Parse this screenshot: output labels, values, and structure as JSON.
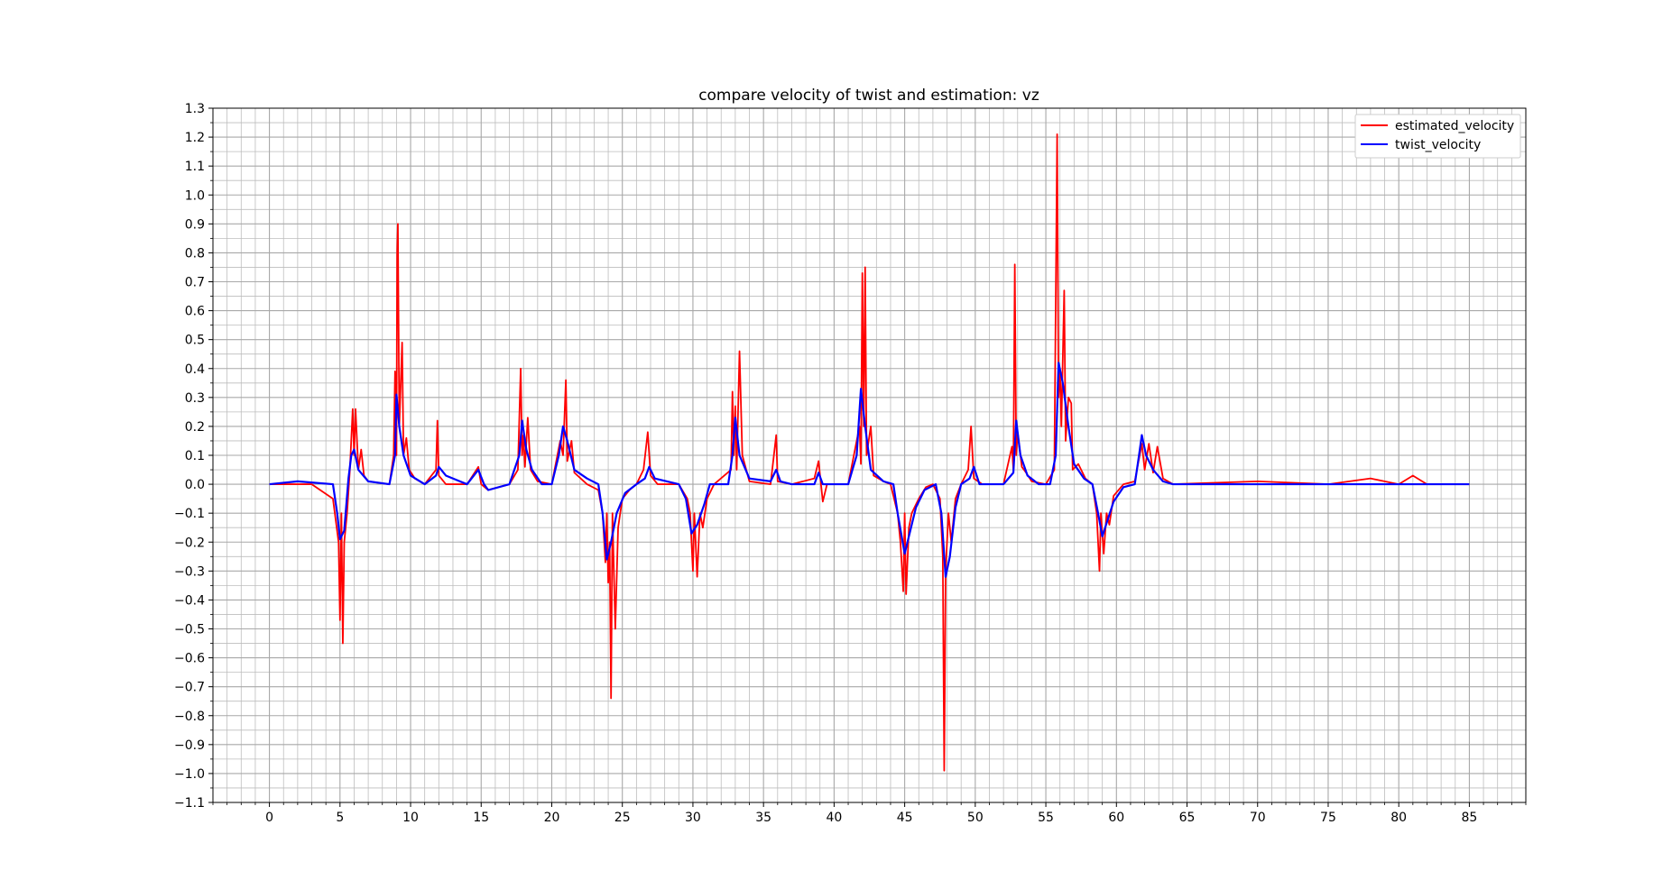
{
  "chart_data": {
    "type": "line",
    "title": "compare velocity of twist and estimation: vz",
    "xlabel": "",
    "ylabel": "",
    "xlim": [
      -4,
      89
    ],
    "ylim": [
      -1.1,
      1.3
    ],
    "x_ticks": [
      "0",
      "5",
      "10",
      "15",
      "20",
      "25",
      "30",
      "35",
      "40",
      "45",
      "50",
      "55",
      "60",
      "65",
      "70",
      "75",
      "80",
      "85"
    ],
    "y_ticks": [
      "1.3",
      "1.2",
      "1.1",
      "1.0",
      "0.9",
      "0.8",
      "0.7",
      "0.6",
      "0.5",
      "0.4",
      "0.3",
      "0.2",
      "0.1",
      "0.0",
      "−0.1",
      "−0.2",
      "−0.3",
      "−0.4",
      "−0.5",
      "−0.6",
      "−0.7",
      "−0.8",
      "−0.9",
      "−1.0",
      "−1.1"
    ],
    "grid": true,
    "minor_grid": true,
    "legend_position": "top-right",
    "series": [
      {
        "name": "estimated_velocity",
        "color": "#ff0000",
        "points": [
          [
            0,
            0
          ],
          [
            3,
            0
          ],
          [
            4.5,
            -0.05
          ],
          [
            4.9,
            -0.2
          ],
          [
            5.0,
            -0.47
          ],
          [
            5.1,
            -0.1
          ],
          [
            5.2,
            -0.55
          ],
          [
            5.3,
            -0.2
          ],
          [
            5.5,
            -0.1
          ],
          [
            5.7,
            0.05
          ],
          [
            5.9,
            0.26
          ],
          [
            6.0,
            0.1
          ],
          [
            6.1,
            0.26
          ],
          [
            6.3,
            0.05
          ],
          [
            6.5,
            0.12
          ],
          [
            6.7,
            0.03
          ],
          [
            7,
            0.01
          ],
          [
            8.5,
            0
          ],
          [
            8.8,
            0.1
          ],
          [
            8.9,
            0.39
          ],
          [
            9.0,
            0.1
          ],
          [
            9.05,
            0.8
          ],
          [
            9.1,
            0.9
          ],
          [
            9.2,
            0.2
          ],
          [
            9.4,
            0.49
          ],
          [
            9.5,
            0.1
          ],
          [
            9.7,
            0.16
          ],
          [
            9.9,
            0.05
          ],
          [
            10.3,
            0.02
          ],
          [
            11,
            0
          ],
          [
            11.8,
            0.05
          ],
          [
            11.9,
            0.22
          ],
          [
            12.0,
            0.03
          ],
          [
            12.5,
            0
          ],
          [
            14,
            0
          ],
          [
            14.8,
            0.06
          ],
          [
            15,
            0
          ],
          [
            15.5,
            -0.02
          ],
          [
            17,
            0
          ],
          [
            17.6,
            0.05
          ],
          [
            17.8,
            0.4
          ],
          [
            17.9,
            0.1
          ],
          [
            18.0,
            0.17
          ],
          [
            18.1,
            0.06
          ],
          [
            18.3,
            0.23
          ],
          [
            18.5,
            0.05
          ],
          [
            19,
            0.01
          ],
          [
            20,
            0
          ],
          [
            20.6,
            0.15
          ],
          [
            20.8,
            0.1
          ],
          [
            21.0,
            0.36
          ],
          [
            21.1,
            0.08
          ],
          [
            21.4,
            0.15
          ],
          [
            21.6,
            0.04
          ],
          [
            22.5,
            0
          ],
          [
            23.3,
            -0.02
          ],
          [
            23.6,
            -0.1
          ],
          [
            23.8,
            -0.27
          ],
          [
            23.9,
            -0.1
          ],
          [
            24.0,
            -0.34
          ],
          [
            24.1,
            -0.2
          ],
          [
            24.2,
            -0.74
          ],
          [
            24.3,
            -0.1
          ],
          [
            24.5,
            -0.5
          ],
          [
            24.7,
            -0.15
          ],
          [
            25.0,
            -0.05
          ],
          [
            25.5,
            -0.02
          ],
          [
            26,
            0
          ],
          [
            26.5,
            0.05
          ],
          [
            26.8,
            0.18
          ],
          [
            27.0,
            0.03
          ],
          [
            27.5,
            0
          ],
          [
            29,
            0
          ],
          [
            29.6,
            -0.05
          ],
          [
            29.8,
            -0.1
          ],
          [
            30.0,
            -0.3
          ],
          [
            30.1,
            -0.1
          ],
          [
            30.3,
            -0.32
          ],
          [
            30.5,
            -0.1
          ],
          [
            30.7,
            -0.15
          ],
          [
            31,
            -0.05
          ],
          [
            31.5,
            0
          ],
          [
            32.7,
            0.05
          ],
          [
            32.8,
            0.32
          ],
          [
            32.9,
            0.1
          ],
          [
            33.0,
            0.27
          ],
          [
            33.1,
            0.05
          ],
          [
            33.3,
            0.46
          ],
          [
            33.5,
            0.1
          ],
          [
            34,
            0.01
          ],
          [
            35.5,
            0
          ],
          [
            35.9,
            0.17
          ],
          [
            36.0,
            0.01
          ],
          [
            37,
            0
          ],
          [
            38.6,
            0.02
          ],
          [
            38.9,
            0.08
          ],
          [
            39.2,
            -0.06
          ],
          [
            39.5,
            0
          ],
          [
            41,
            0
          ],
          [
            41.8,
            0.2
          ],
          [
            41.9,
            0.07
          ],
          [
            42.0,
            0.73
          ],
          [
            42.1,
            0.2
          ],
          [
            42.2,
            0.75
          ],
          [
            42.3,
            0.1
          ],
          [
            42.6,
            0.2
          ],
          [
            42.8,
            0.03
          ],
          [
            43.5,
            0.01
          ],
          [
            44,
            0
          ],
          [
            44.5,
            -0.1
          ],
          [
            44.7,
            -0.2
          ],
          [
            44.9,
            -0.37
          ],
          [
            45.0,
            -0.1
          ],
          [
            45.1,
            -0.38
          ],
          [
            45.3,
            -0.15
          ],
          [
            45.5,
            -0.1
          ],
          [
            46,
            -0.05
          ],
          [
            46.5,
            -0.01
          ],
          [
            47,
            0
          ],
          [
            47.5,
            -0.05
          ],
          [
            47.7,
            -0.25
          ],
          [
            47.8,
            -0.99
          ],
          [
            47.9,
            -0.3
          ],
          [
            48.1,
            -0.1
          ],
          [
            48.3,
            -0.2
          ],
          [
            48.6,
            -0.05
          ],
          [
            49,
            0
          ],
          [
            49.5,
            0.05
          ],
          [
            49.7,
            0.2
          ],
          [
            49.9,
            0.02
          ],
          [
            50.5,
            0
          ],
          [
            52,
            0
          ],
          [
            52.6,
            0.13
          ],
          [
            52.7,
            0.05
          ],
          [
            52.8,
            0.76
          ],
          [
            52.9,
            0.1
          ],
          [
            53.0,
            0.18
          ],
          [
            53.3,
            0.06
          ],
          [
            53.6,
            0.04
          ],
          [
            54,
            0.01
          ],
          [
            55,
            0
          ],
          [
            55.6,
            0.05
          ],
          [
            55.8,
            1.21
          ],
          [
            55.9,
            0.3
          ],
          [
            56.0,
            0.4
          ],
          [
            56.1,
            0.2
          ],
          [
            56.3,
            0.67
          ],
          [
            56.4,
            0.15
          ],
          [
            56.6,
            0.3
          ],
          [
            56.8,
            0.28
          ],
          [
            56.9,
            0.05
          ],
          [
            57.3,
            0.07
          ],
          [
            57.8,
            0.02
          ],
          [
            58.3,
            0
          ],
          [
            58.6,
            -0.1
          ],
          [
            58.8,
            -0.3
          ],
          [
            58.9,
            -0.1
          ],
          [
            59.1,
            -0.24
          ],
          [
            59.3,
            -0.1
          ],
          [
            59.5,
            -0.14
          ],
          [
            59.8,
            -0.04
          ],
          [
            60.5,
            0
          ],
          [
            61.3,
            0.01
          ],
          [
            61.8,
            0.14
          ],
          [
            62.0,
            0.05
          ],
          [
            62.3,
            0.14
          ],
          [
            62.6,
            0.04
          ],
          [
            62.9,
            0.13
          ],
          [
            63.3,
            0.02
          ],
          [
            64,
            0
          ],
          [
            70,
            0.01
          ],
          [
            75,
            0
          ],
          [
            78,
            0.02
          ],
          [
            80,
            0
          ],
          [
            81,
            0.03
          ],
          [
            82,
            0
          ],
          [
            85,
            0
          ]
        ]
      },
      {
        "name": "twist_velocity",
        "color": "#0000ff",
        "points": [
          [
            0,
            0
          ],
          [
            2,
            0.01
          ],
          [
            4.5,
            0
          ],
          [
            4.8,
            -0.1
          ],
          [
            5.0,
            -0.19
          ],
          [
            5.3,
            -0.16
          ],
          [
            5.6,
            0.02
          ],
          [
            5.8,
            0.1
          ],
          [
            6.0,
            0.12
          ],
          [
            6.3,
            0.05
          ],
          [
            7,
            0.01
          ],
          [
            8.5,
            0
          ],
          [
            8.9,
            0.1
          ],
          [
            9.0,
            0.31
          ],
          [
            9.2,
            0.2
          ],
          [
            9.5,
            0.1
          ],
          [
            10,
            0.03
          ],
          [
            11,
            0
          ],
          [
            11.8,
            0.03
          ],
          [
            12,
            0.06
          ],
          [
            12.5,
            0.03
          ],
          [
            14,
            0
          ],
          [
            14.8,
            0.05
          ],
          [
            15.2,
            0
          ],
          [
            15.5,
            -0.02
          ],
          [
            17,
            0
          ],
          [
            17.7,
            0.1
          ],
          [
            17.9,
            0.22
          ],
          [
            18.2,
            0.12
          ],
          [
            18.6,
            0.05
          ],
          [
            19.3,
            0
          ],
          [
            20,
            0
          ],
          [
            20.5,
            0.1
          ],
          [
            20.8,
            0.2
          ],
          [
            21.1,
            0.15
          ],
          [
            21.6,
            0.05
          ],
          [
            22.5,
            0.02
          ],
          [
            23.3,
            0
          ],
          [
            23.6,
            -0.1
          ],
          [
            23.9,
            -0.26
          ],
          [
            24.2,
            -0.2
          ],
          [
            24.6,
            -0.1
          ],
          [
            25.2,
            -0.03
          ],
          [
            26,
            0
          ],
          [
            26.6,
            0.02
          ],
          [
            26.9,
            0.06
          ],
          [
            27.3,
            0.02
          ],
          [
            29,
            0
          ],
          [
            29.5,
            -0.05
          ],
          [
            29.9,
            -0.17
          ],
          [
            30.3,
            -0.14
          ],
          [
            30.8,
            -0.07
          ],
          [
            31.2,
            0
          ],
          [
            32.5,
            0
          ],
          [
            32.8,
            0.1
          ],
          [
            33.0,
            0.23
          ],
          [
            33.3,
            0.1
          ],
          [
            34,
            0.02
          ],
          [
            35.5,
            0.01
          ],
          [
            35.9,
            0.05
          ],
          [
            36.2,
            0.01
          ],
          [
            37,
            0
          ],
          [
            38.6,
            0
          ],
          [
            38.9,
            0.04
          ],
          [
            39.2,
            0
          ],
          [
            41,
            0
          ],
          [
            41.6,
            0.1
          ],
          [
            41.9,
            0.33
          ],
          [
            42.2,
            0.2
          ],
          [
            42.6,
            0.05
          ],
          [
            43.5,
            0.01
          ],
          [
            44.2,
            0
          ],
          [
            44.5,
            -0.1
          ],
          [
            45.0,
            -0.24
          ],
          [
            45.4,
            -0.16
          ],
          [
            45.8,
            -0.08
          ],
          [
            46.4,
            -0.02
          ],
          [
            47.2,
            0
          ],
          [
            47.6,
            -0.1
          ],
          [
            47.9,
            -0.32
          ],
          [
            48.2,
            -0.25
          ],
          [
            48.6,
            -0.08
          ],
          [
            49,
            0
          ],
          [
            49.6,
            0.02
          ],
          [
            49.9,
            0.06
          ],
          [
            50.3,
            0
          ],
          [
            52,
            0
          ],
          [
            52.7,
            0.04
          ],
          [
            52.9,
            0.22
          ],
          [
            53.2,
            0.1
          ],
          [
            53.7,
            0.03
          ],
          [
            54.5,
            0
          ],
          [
            55.3,
            0
          ],
          [
            55.7,
            0.1
          ],
          [
            55.9,
            0.42
          ],
          [
            56.2,
            0.35
          ],
          [
            56.6,
            0.2
          ],
          [
            57,
            0.07
          ],
          [
            57.7,
            0.02
          ],
          [
            58.3,
            0
          ],
          [
            58.7,
            -0.1
          ],
          [
            59.0,
            -0.18
          ],
          [
            59.4,
            -0.12
          ],
          [
            59.8,
            -0.06
          ],
          [
            60.5,
            -0.01
          ],
          [
            61.3,
            0
          ],
          [
            61.6,
            0.1
          ],
          [
            61.8,
            0.17
          ],
          [
            62.1,
            0.1
          ],
          [
            62.6,
            0.05
          ],
          [
            63.3,
            0.01
          ],
          [
            64,
            0
          ],
          [
            70,
            0
          ],
          [
            75,
            0
          ],
          [
            80,
            0
          ],
          [
            85,
            0
          ]
        ]
      }
    ]
  }
}
